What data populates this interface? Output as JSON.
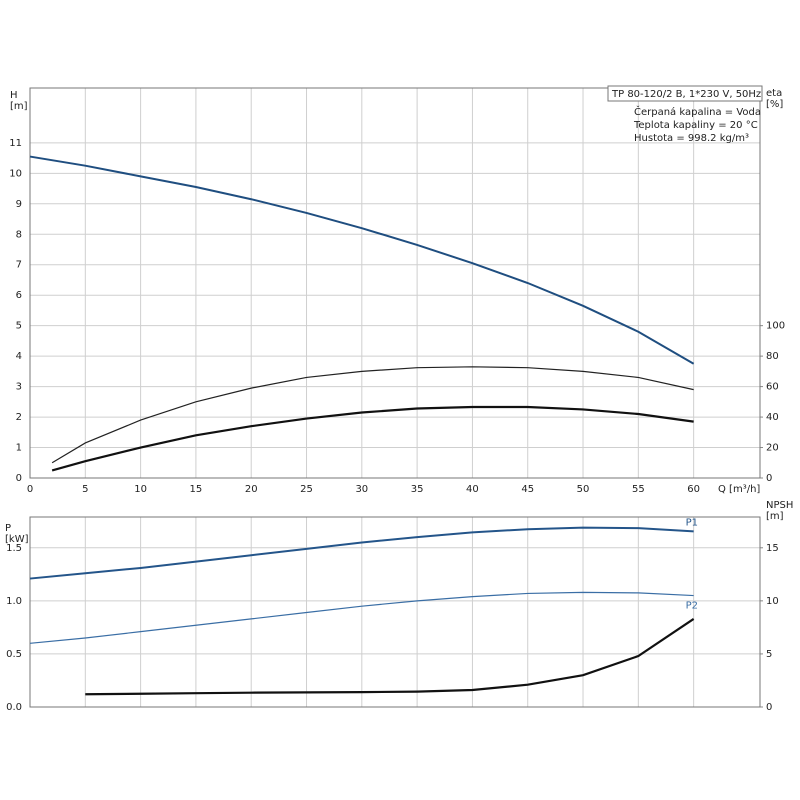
{
  "chart_data": [
    {
      "type": "line",
      "axis_labels": {
        "y": [
          "H",
          "[m]"
        ],
        "y2": [
          "eta",
          "[%]"
        ],
        "x": "Q [m³/h]"
      },
      "info": {
        "title": "TP 80-120/2 B, 1*230 V, 50Hz",
        "lines": [
          "Čerpaná kapalina = Voda",
          "Teplota kapaliny = 20 °C",
          "Hustota = 998.2 kg/m³"
        ]
      },
      "xlim": [
        0,
        66
      ],
      "xticks": [
        0,
        5,
        10,
        15,
        20,
        25,
        30,
        35,
        40,
        45,
        50,
        55,
        60
      ],
      "ylim": [
        0,
        12.8
      ],
      "yticks": [
        0,
        1,
        2,
        3,
        4,
        5,
        6,
        7,
        8,
        9,
        10,
        11
      ],
      "y2lim": [
        0,
        256
      ],
      "y2ticks": [
        0,
        20,
        40,
        60,
        80,
        100
      ],
      "grid": true,
      "series": [
        {
          "color": "#1f4e80",
          "width": 2,
          "x": [
            0,
            5,
            10,
            15,
            20,
            25,
            30,
            35,
            40,
            45,
            50,
            55,
            60
          ],
          "values": [
            10.55,
            10.25,
            9.9,
            9.55,
            9.15,
            8.7,
            8.2,
            7.65,
            7.05,
            6.4,
            5.65,
            4.8,
            3.75
          ]
        },
        {
          "color": "#222222",
          "width": 1.2,
          "axis": "y2",
          "x": [
            2,
            5,
            10,
            15,
            20,
            25,
            30,
            35,
            40,
            45,
            50,
            55,
            60
          ],
          "values": [
            10,
            23,
            38,
            50,
            59,
            66,
            70,
            72.4,
            73,
            72.4,
            70,
            66,
            58
          ]
        },
        {
          "color": "#111111",
          "width": 2.2,
          "axis": "y2",
          "x": [
            2,
            5,
            10,
            15,
            20,
            25,
            30,
            35,
            40,
            45,
            50,
            55,
            60
          ],
          "values": [
            5,
            11,
            20,
            28,
            34,
            39,
            43,
            45.6,
            46.6,
            46.6,
            45,
            42,
            37
          ]
        }
      ]
    },
    {
      "type": "line",
      "axis_labels": {
        "y": [
          "P",
          "[kW]"
        ],
        "y2": [
          "NPSH",
          "[m]"
        ]
      },
      "xlim": [
        0,
        66
      ],
      "ylim": [
        0,
        1.79
      ],
      "yticks": [
        {
          "value": 0,
          "label": "0.0"
        },
        0.5,
        {
          "value": 1,
          "label": "1.0"
        },
        1.5
      ],
      "y2lim": [
        0,
        17.9
      ],
      "y2ticks": [
        0,
        5,
        10,
        15
      ],
      "grid": true,
      "series": [
        {
          "name": "P1",
          "color": "#24558a",
          "width": 2,
          "x": [
            0,
            5,
            10,
            15,
            20,
            25,
            30,
            35,
            40,
            45,
            50,
            55,
            60
          ],
          "values": [
            1.21,
            1.26,
            1.31,
            1.37,
            1.43,
            1.49,
            1.55,
            1.6,
            1.645,
            1.675,
            1.69,
            1.685,
            1.655
          ]
        },
        {
          "name": "P2",
          "color": "#3a6ea5",
          "width": 1.2,
          "x": [
            0,
            5,
            10,
            15,
            20,
            25,
            30,
            35,
            40,
            45,
            50,
            55,
            60
          ],
          "values": [
            0.6,
            0.65,
            0.71,
            0.77,
            0.83,
            0.89,
            0.95,
            1.0,
            1.04,
            1.07,
            1.08,
            1.075,
            1.05
          ]
        },
        {
          "color": "#111111",
          "width": 2.2,
          "axis": "y2",
          "x": [
            5,
            10,
            15,
            20,
            25,
            30,
            35,
            40,
            45,
            50,
            55,
            60
          ],
          "values": [
            1.2,
            1.25,
            1.3,
            1.35,
            1.38,
            1.4,
            1.45,
            1.6,
            2.1,
            3.0,
            4.8,
            8.3
          ]
        }
      ]
    }
  ]
}
